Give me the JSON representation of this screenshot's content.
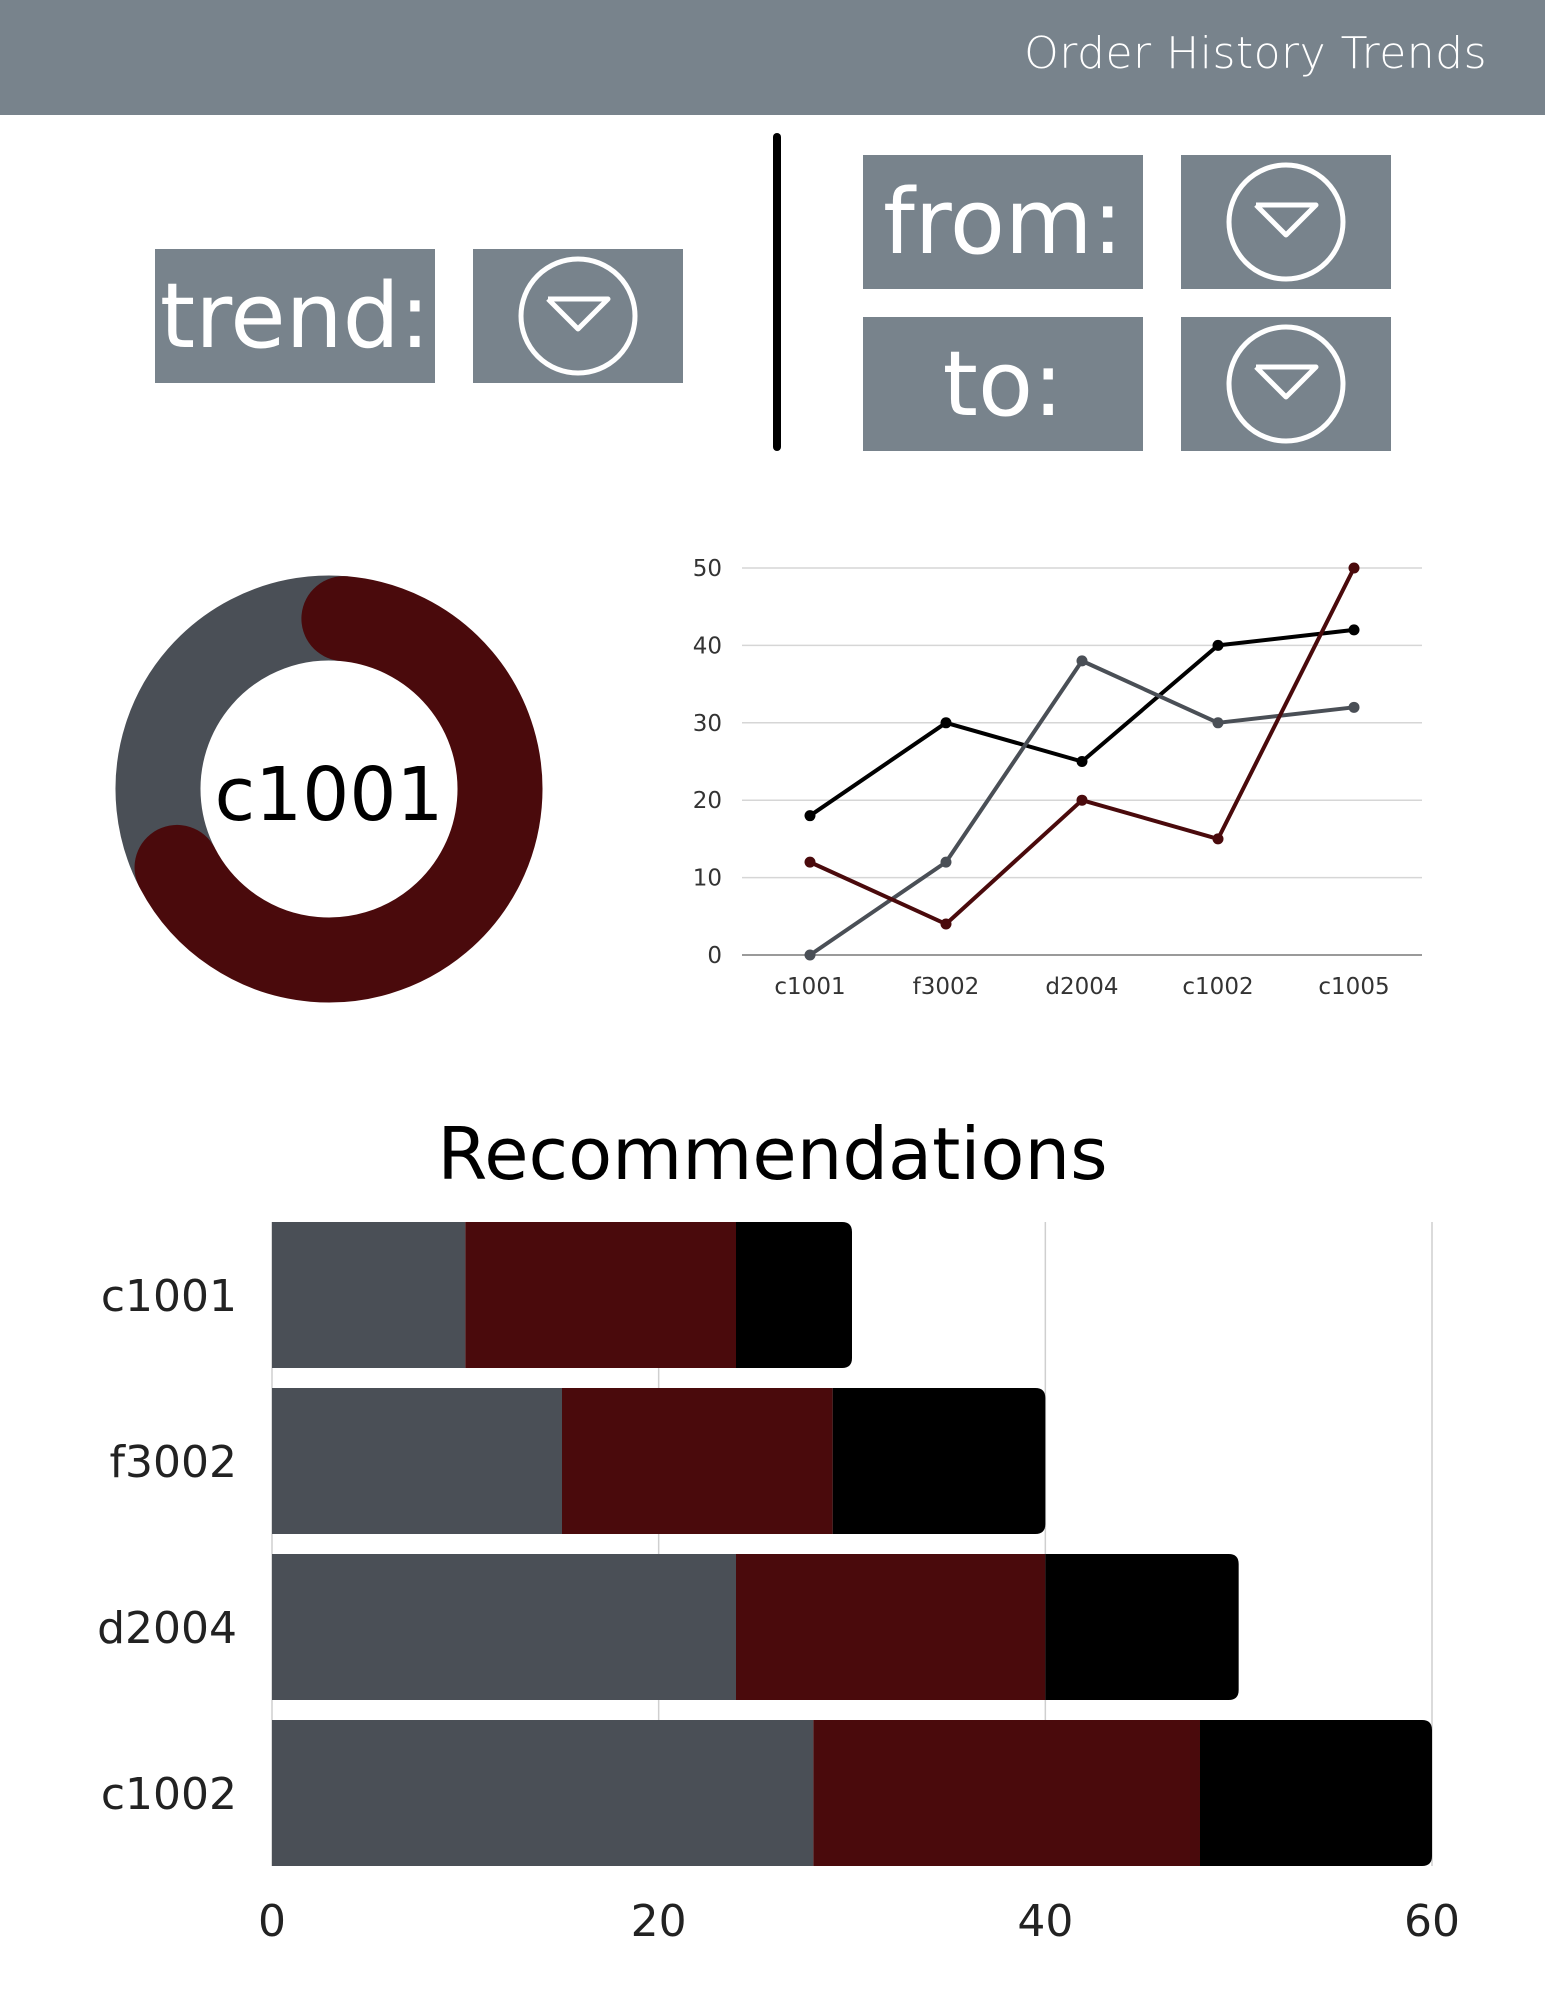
{
  "header": {
    "title": "Order History Trends"
  },
  "controls": {
    "trend_label": "trend:",
    "from_label": "from:",
    "to_label": "to:",
    "dropdown_icon": "chevron-down-circle-icon"
  },
  "colors": {
    "header_bg": "#78838c",
    "series_gray": "#4a4f56",
    "series_red": "#4a0a0c",
    "series_black": "#000000"
  },
  "donut": {
    "center_label": "c1001",
    "segments": [
      {
        "name": "red",
        "value": 66,
        "color": "#4a0a0c"
      },
      {
        "name": "gray",
        "value": 34,
        "color": "#4a4f56"
      }
    ]
  },
  "recommendations": {
    "title": "Recommendations"
  },
  "chart_data": [
    {
      "type": "line",
      "categories": [
        "c1001",
        "f3002",
        "d2004",
        "c1002",
        "c1005"
      ],
      "series": [
        {
          "name": "black",
          "color": "#000000",
          "values": [
            18,
            30,
            25,
            40,
            42
          ]
        },
        {
          "name": "gray",
          "color": "#4a4f56",
          "values": [
            0,
            12,
            38,
            30,
            32
          ]
        },
        {
          "name": "red",
          "color": "#4a0a0c",
          "values": [
            12,
            4,
            20,
            15,
            50
          ]
        }
      ],
      "ylim": [
        0,
        50
      ],
      "yticks": [
        0,
        10,
        20,
        30,
        40,
        50
      ],
      "grid": true
    },
    {
      "type": "bar",
      "orientation": "horizontal",
      "stacked": true,
      "categories": [
        "c1001",
        "f3002",
        "d2004",
        "c1002"
      ],
      "series": [
        {
          "name": "gray",
          "color": "#4a4f56",
          "values": [
            10,
            15,
            24,
            28
          ]
        },
        {
          "name": "red",
          "color": "#4a0a0c",
          "values": [
            14,
            14,
            16,
            20
          ]
        },
        {
          "name": "black",
          "color": "#000000",
          "values": [
            6,
            11,
            10,
            12
          ]
        }
      ],
      "xlim": [
        0,
        60
      ],
      "xticks": [
        0,
        20,
        40,
        60
      ],
      "grid": true
    }
  ]
}
